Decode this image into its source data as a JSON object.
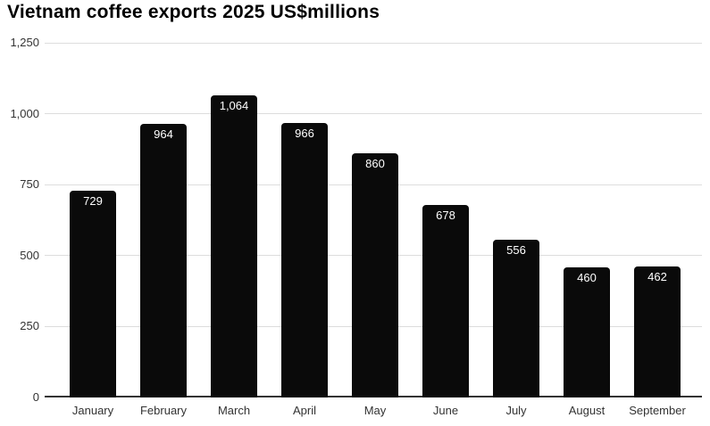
{
  "title": "Vietnam coffee exports 2025 US$millions",
  "colors": {
    "bar": "#0a0a0a",
    "bar_value_label": "#ffffff",
    "gridline": "#dddddd",
    "zero_axis": "#333333",
    "axis_tick_label": "#333333",
    "title": "#000000",
    "background": "#ffffff"
  },
  "chart_data": {
    "type": "bar",
    "title": "Vietnam coffee exports 2025 US$millions",
    "categories": [
      "January",
      "February",
      "March",
      "April",
      "May",
      "June",
      "July",
      "August",
      "September"
    ],
    "values": [
      729,
      964,
      1064,
      966,
      860,
      678,
      556,
      460,
      462
    ],
    "value_labels": [
      "729",
      "964",
      "1,064",
      "966",
      "860",
      "678",
      "556",
      "460",
      "462"
    ],
    "xlabel": "",
    "ylabel": "",
    "ylim": [
      0,
      1250
    ],
    "yticks": [
      0,
      250,
      500,
      750,
      1000,
      1250
    ],
    "ytick_labels": [
      "0",
      "250",
      "500",
      "750",
      "1,000",
      "1,250"
    ],
    "grid": true,
    "legend": false,
    "bar_labels_inside": true
  }
}
